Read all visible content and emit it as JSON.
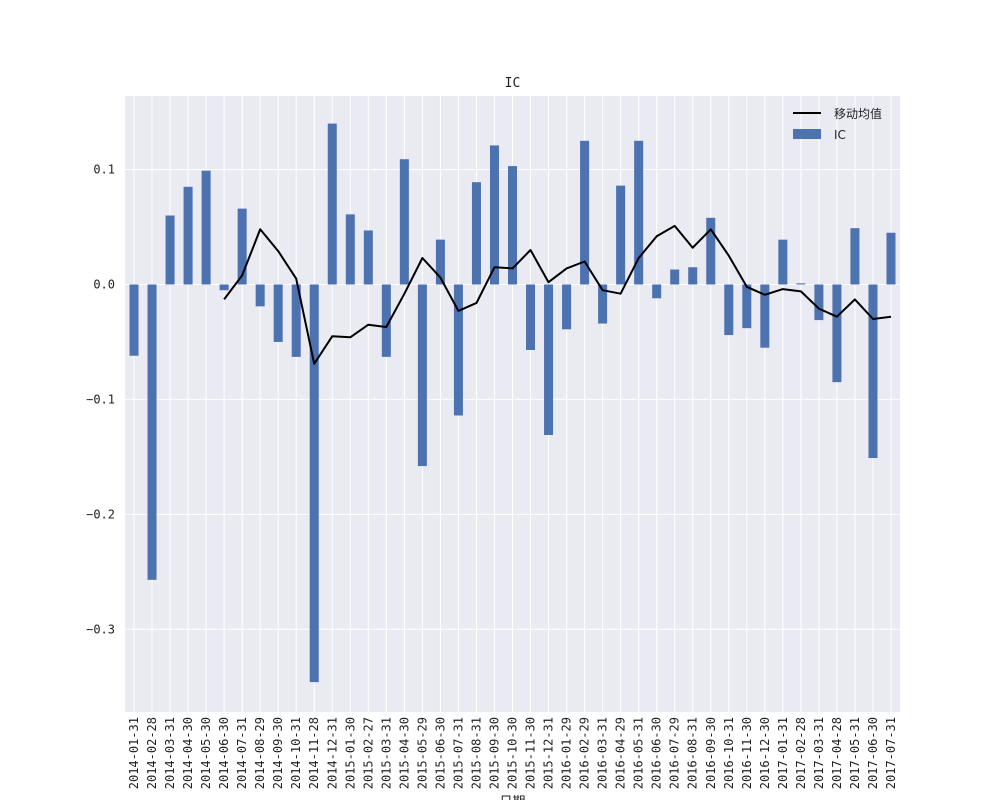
{
  "chart_data": {
    "type": "bar",
    "title": "IC",
    "xlabel": "日期",
    "ylabel": "",
    "ylim": [
      -0.372,
      0.164
    ],
    "yticks": [
      0.1,
      0.0,
      -0.1,
      -0.2,
      -0.3
    ],
    "ytick_labels": [
      "0.1",
      "0.0",
      "−0.1",
      "−0.2",
      "−0.3"
    ],
    "grid": true,
    "legend_position": "top-right",
    "colors": {
      "background": "#eaeaf2",
      "grid": "#ffffff",
      "bar": "#4c72b0",
      "line": "#000000"
    },
    "categories": [
      "2014-01-31",
      "2014-02-28",
      "2014-03-31",
      "2014-04-30",
      "2014-05-30",
      "2014-06-30",
      "2014-07-31",
      "2014-08-29",
      "2014-09-30",
      "2014-10-31",
      "2014-11-28",
      "2014-12-31",
      "2015-01-30",
      "2015-02-27",
      "2015-03-31",
      "2015-04-30",
      "2015-05-29",
      "2015-06-30",
      "2015-07-31",
      "2015-08-31",
      "2015-09-30",
      "2015-10-30",
      "2015-11-30",
      "2015-12-31",
      "2016-01-29",
      "2016-02-29",
      "2016-03-31",
      "2016-04-29",
      "2016-05-31",
      "2016-06-30",
      "2016-07-29",
      "2016-08-31",
      "2016-09-30",
      "2016-10-31",
      "2016-11-30",
      "2016-12-30",
      "2017-01-31",
      "2017-02-28",
      "2017-03-31",
      "2017-04-28",
      "2017-05-31",
      "2017-06-30",
      "2017-07-31"
    ],
    "series": [
      {
        "name": "IC",
        "type": "bar",
        "values": [
          -0.062,
          -0.257,
          0.06,
          0.085,
          0.099,
          -0.005,
          0.066,
          -0.019,
          -0.05,
          -0.063,
          -0.346,
          0.14,
          0.061,
          0.047,
          -0.063,
          0.109,
          -0.158,
          0.039,
          -0.114,
          0.089,
          0.121,
          0.103,
          -0.057,
          -0.131,
          -0.039,
          0.125,
          -0.034,
          0.086,
          0.125,
          -0.012,
          0.013,
          0.015,
          0.058,
          -0.044,
          -0.038,
          -0.055,
          0.039,
          0.001,
          -0.031,
          -0.085,
          0.049,
          -0.151,
          0.045
        ]
      },
      {
        "name": "移动均值",
        "type": "line",
        "values": [
          null,
          null,
          null,
          null,
          null,
          -0.013,
          0.008,
          0.048,
          0.029,
          0.005,
          -0.069,
          -0.045,
          -0.046,
          -0.035,
          -0.037,
          -0.008,
          0.023,
          0.006,
          -0.023,
          -0.016,
          0.015,
          0.014,
          0.03,
          0.002,
          0.014,
          0.02,
          -0.005,
          -0.008,
          0.023,
          0.042,
          0.051,
          0.032,
          0.048,
          0.025,
          -0.002,
          -0.009,
          -0.004,
          -0.006,
          -0.021,
          -0.028,
          -0.013,
          -0.03,
          -0.028
        ]
      }
    ]
  }
}
